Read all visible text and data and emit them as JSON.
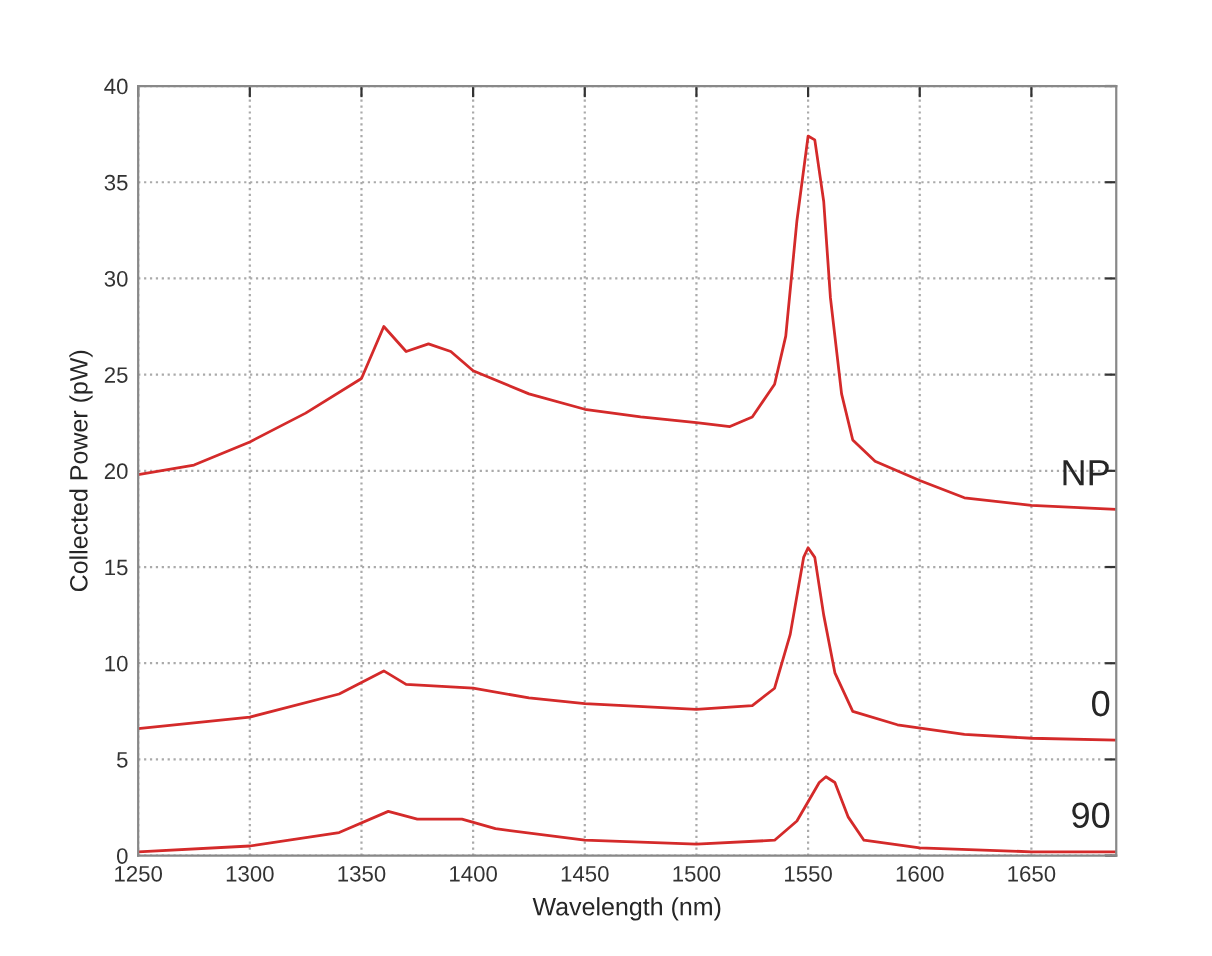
{
  "chart_data": {
    "type": "line",
    "xlabel": "Wavelength (nm)",
    "ylabel": "Collected Power (pW)",
    "xlim": [
      1250,
      1688
    ],
    "xticks": [
      1250,
      1300,
      1350,
      1400,
      1450,
      1500,
      1550,
      1600,
      1650
    ],
    "ylim": [
      0,
      40
    ],
    "yticks": [
      0,
      5,
      10,
      15,
      20,
      25,
      30,
      35,
      40
    ],
    "grid": true,
    "legend": false,
    "marker": "none",
    "line_style": "solid",
    "series": [
      {
        "name": "NP",
        "color": "#d42a2a",
        "x": [
          1250,
          1275,
          1300,
          1325,
          1350,
          1360,
          1370,
          1380,
          1390,
          1400,
          1425,
          1450,
          1475,
          1500,
          1515,
          1525,
          1535,
          1540,
          1545,
          1550,
          1553,
          1557,
          1560,
          1565,
          1570,
          1580,
          1600,
          1620,
          1650,
          1688
        ],
        "values": [
          19.8,
          20.3,
          21.5,
          23,
          24.8,
          27.5,
          26.2,
          26.6,
          26.2,
          25.2,
          24.0,
          23.2,
          22.8,
          22.5,
          22.3,
          22.8,
          24.5,
          27,
          33,
          37.4,
          37.2,
          34,
          29,
          24,
          21.6,
          20.5,
          19.5,
          18.6,
          18.2,
          18.0
        ]
      },
      {
        "name": "0",
        "color": "#d42a2a",
        "x": [
          1250,
          1300,
          1340,
          1360,
          1370,
          1400,
          1425,
          1450,
          1500,
          1525,
          1535,
          1542,
          1548,
          1550,
          1553,
          1557,
          1562,
          1570,
          1590,
          1620,
          1650,
          1688
        ],
        "values": [
          6.6,
          7.2,
          8.4,
          9.6,
          8.9,
          8.7,
          8.2,
          7.9,
          7.6,
          7.8,
          8.7,
          11.5,
          15.5,
          16.0,
          15.5,
          12.5,
          9.5,
          7.5,
          6.8,
          6.3,
          6.1,
          6.0
        ]
      },
      {
        "name": "90",
        "color": "#d42a2a",
        "x": [
          1250,
          1300,
          1340,
          1362,
          1375,
          1395,
          1410,
          1450,
          1500,
          1535,
          1545,
          1555,
          1558,
          1562,
          1568,
          1575,
          1600,
          1650,
          1688
        ],
        "values": [
          0.2,
          0.5,
          1.2,
          2.3,
          1.9,
          1.9,
          1.4,
          0.8,
          0.6,
          0.8,
          1.8,
          3.8,
          4.1,
          3.8,
          2.0,
          0.8,
          0.4,
          0.2,
          0.2
        ]
      }
    ]
  }
}
